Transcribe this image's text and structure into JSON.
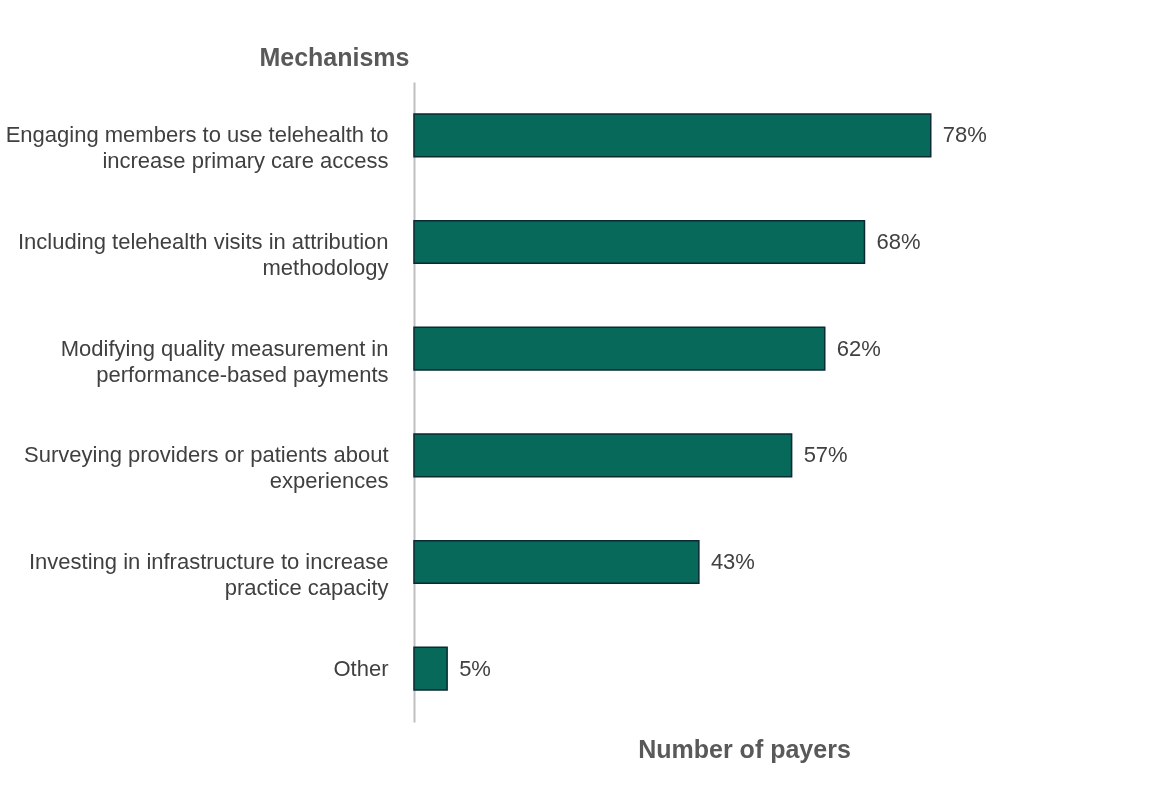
{
  "chart_data": {
    "type": "bar",
    "orientation": "horizontal",
    "ylabel": "Mechanisms",
    "xlabel": "Number of payers",
    "categories": [
      "Engaging members to use telehealth to increase primary care access",
      "Including telehealth visits in attribution methodology",
      "Modifying quality measurement in performance-based payments",
      "Surveying providers or patients about experiences",
      "Investing in infrastructure to increase practice capacity",
      "Other"
    ],
    "values": [
      78,
      68,
      62,
      57,
      43,
      5
    ],
    "value_labels": [
      "78%",
      "68%",
      "62%",
      "57%",
      "43%",
      "5%"
    ],
    "color": "#07695a",
    "tick_labels": "y"
  }
}
